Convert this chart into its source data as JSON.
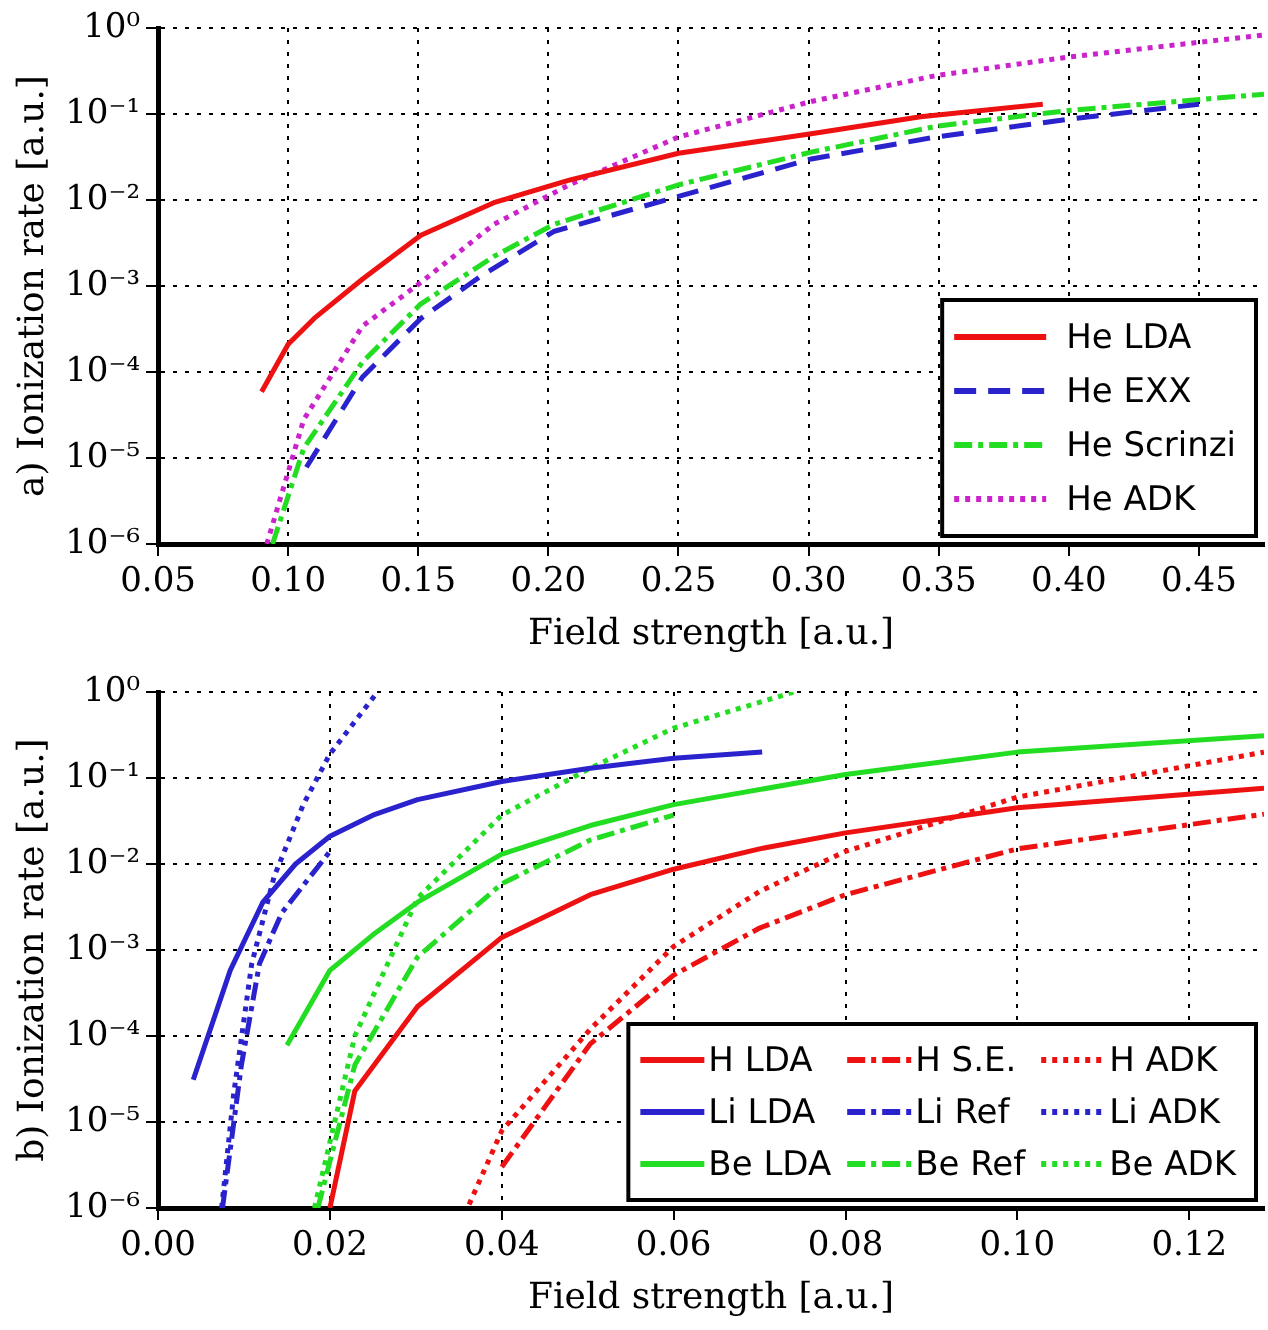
{
  "chart_data": [
    {
      "type": "line",
      "xlabel": "Field strength [a.u.]",
      "ylabel": "a) Ionization rate [a.u.]",
      "log": "y",
      "grid": true,
      "legend": "bottom right",
      "xlim": [
        0.05,
        0.475
      ],
      "xticks": [
        0.05,
        {
          "value": 0.1,
          "label": "0.10"
        },
        0.15,
        {
          "value": 0.2,
          "label": "0.20"
        },
        0.25,
        {
          "value": 0.3,
          "label": "0.30"
        },
        0.35,
        {
          "value": 0.4,
          "label": "0.40"
        },
        0.45
      ],
      "ylim": [
        1e-06,
        1
      ],
      "yticks": [
        {
          "value": 1e-06,
          "label": "10⁻⁶"
        },
        {
          "value": 1e-05,
          "label": "10⁻⁵"
        },
        {
          "value": 0.0001,
          "label": "10⁻⁴"
        },
        {
          "value": 0.001,
          "label": "10⁻³"
        },
        {
          "value": 0.01,
          "label": "10⁻²"
        },
        {
          "value": 0.1,
          "label": "10⁻¹"
        },
        {
          "value": 1,
          "label": "10⁰"
        }
      ],
      "series": [
        {
          "name": "He LDA",
          "color": "#ee1111",
          "line_style": "solid",
          "x": [
            0.0898,
            0.1,
            0.11,
            0.1285,
            0.151,
            0.179,
            0.208,
            0.25,
            0.301,
            0.343,
            0.39
          ],
          "values": [
            5.9e-05,
            0.00021,
            0.00042,
            0.0012,
            0.0039,
            0.0093,
            0.017,
            0.035,
            0.059,
            0.093,
            0.13
          ]
        },
        {
          "name": "He EXX",
          "color": "#2a22cc",
          "line_style": "dashed",
          "x": [
            0.107,
            0.1285,
            0.151,
            0.174,
            0.202,
            0.25,
            0.301,
            0.349,
            0.4,
            0.45
          ],
          "values": [
            7.8e-06,
            8.7e-05,
            0.00042,
            0.0013,
            0.0043,
            0.011,
            0.03,
            0.054,
            0.087,
            0.13
          ]
        },
        {
          "name": "He Scrinzi",
          "color": "#22dd22",
          "line_style": "dashdot",
          "x": [
            0.094,
            0.106,
            0.1285,
            0.151,
            0.179,
            0.202,
            0.25,
            0.301,
            0.349,
            0.4,
            0.475
          ],
          "values": [
            1e-06,
            1.3e-05,
            0.00013,
            0.00062,
            0.0022,
            0.0052,
            0.015,
            0.036,
            0.072,
            0.11,
            0.17
          ]
        },
        {
          "name": "He ADK",
          "color": "#cc22cc",
          "line_style": "dotted",
          "x": [
            0.0918,
            0.106,
            0.1285,
            0.151,
            0.179,
            0.208,
            0.25,
            0.301,
            0.349,
            0.4,
            0.475
          ],
          "values": [
            1e-06,
            2.8e-05,
            0.00034,
            0.0011,
            0.0052,
            0.015,
            0.054,
            0.14,
            0.28,
            0.46,
            0.83
          ]
        }
      ]
    },
    {
      "type": "line",
      "xlabel": "Field strength [a.u.]",
      "ylabel": "b) Ionization rate [a.u.]",
      "log": "y",
      "grid": true,
      "legend": "bottom right",
      "xlim": [
        0,
        0.1287
      ],
      "xticks": [
        {
          "value": 0,
          "label": "0.00"
        },
        0.02,
        0.04,
        0.06,
        0.08,
        {
          "value": 0.1,
          "label": "0.10"
        },
        0.12
      ],
      "ylim": [
        1e-06,
        1
      ],
      "yticks": [
        {
          "value": 1e-06,
          "label": "10⁻⁶"
        },
        {
          "value": 1e-05,
          "label": "10⁻⁵"
        },
        {
          "value": 0.0001,
          "label": "10⁻⁴"
        },
        {
          "value": 0.001,
          "label": "10⁻³"
        },
        {
          "value": 0.01,
          "label": "10⁻²"
        },
        {
          "value": 0.1,
          "label": "10⁻¹"
        },
        {
          "value": 1,
          "label": "10⁰"
        }
      ],
      "series": [
        {
          "name": "H LDA",
          "color": "#ee1111",
          "line_style": "solid",
          "x": [
            0.02,
            0.0229,
            0.0302,
            0.04,
            0.0503,
            0.06,
            0.07,
            0.08,
            0.1,
            0.1287
          ],
          "values": [
            1e-06,
            2.3e-05,
            0.00022,
            0.0014,
            0.0044,
            0.0087,
            0.015,
            0.023,
            0.045,
            0.076
          ]
        },
        {
          "name": "H S.E.",
          "color": "#ee1111",
          "line_style": "dashdot",
          "x": [
            0.04,
            0.0503,
            0.06,
            0.07,
            0.08,
            0.1,
            0.1287
          ],
          "values": [
            3e-06,
            8.1e-05,
            0.00051,
            0.0018,
            0.0044,
            0.015,
            0.038
          ]
        },
        {
          "name": "H ADK",
          "color": "#ee1111",
          "line_style": "dotted",
          "x": [
            0.0362,
            0.04,
            0.0503,
            0.06,
            0.07,
            0.08,
            0.1,
            0.1287
          ],
          "values": [
            1.1e-06,
            7.9e-06,
            0.00012,
            0.0011,
            0.0048,
            0.014,
            0.06,
            0.2
          ]
        },
        {
          "name": "Li LDA",
          "color": "#2a22cc",
          "line_style": "solid",
          "x": [
            0.0041,
            0.0084,
            0.0122,
            0.016,
            0.02,
            0.025,
            0.0302,
            0.04,
            0.0503,
            0.06,
            0.0703
          ],
          "values": [
            3.1e-05,
            0.00058,
            0.0036,
            0.01,
            0.021,
            0.037,
            0.056,
            0.091,
            0.13,
            0.17,
            0.2
          ]
        },
        {
          "name": "Li Ref",
          "color": "#2a22cc",
          "line_style": "dashdot",
          "x": [
            0.0075,
            0.0097,
            0.0118,
            0.0144,
            0.02
          ],
          "values": [
            1e-06,
            4.6e-05,
            0.00069,
            0.0027,
            0.014
          ]
        },
        {
          "name": "Li ADK",
          "color": "#2a22cc",
          "line_style": "dotted",
          "x": [
            0.0074,
            0.0088,
            0.0109,
            0.0135,
            0.0169,
            0.02,
            0.0253
          ],
          "values": [
            1e-06,
            2.1e-05,
            0.00069,
            0.0071,
            0.049,
            0.19,
            0.93
          ]
        },
        {
          "name": "Be LDA",
          "color": "#22dd22",
          "line_style": "solid",
          "x": [
            0.015,
            0.02,
            0.025,
            0.0302,
            0.04,
            0.0503,
            0.06,
            0.08,
            0.1,
            0.1287
          ],
          "values": [
            7.8e-05,
            0.00058,
            0.0015,
            0.0036,
            0.013,
            0.028,
            0.049,
            0.11,
            0.2,
            0.31
          ]
        },
        {
          "name": "Be Ref",
          "color": "#22dd22",
          "line_style": "dashdot",
          "x": [
            0.0186,
            0.0229,
            0.0302,
            0.04,
            0.0503,
            0.06
          ],
          "values": [
            1e-06,
            4.6e-05,
            0.00083,
            0.0059,
            0.019,
            0.037
          ]
        },
        {
          "name": "Be ADK",
          "color": "#22dd22",
          "line_style": "dotted",
          "x": [
            0.0182,
            0.0229,
            0.0302,
            0.04,
            0.0503,
            0.06,
            0.074
          ],
          "values": [
            1e-06,
            0.0001,
            0.004,
            0.037,
            0.13,
            0.38,
            1.0
          ]
        }
      ]
    }
  ]
}
